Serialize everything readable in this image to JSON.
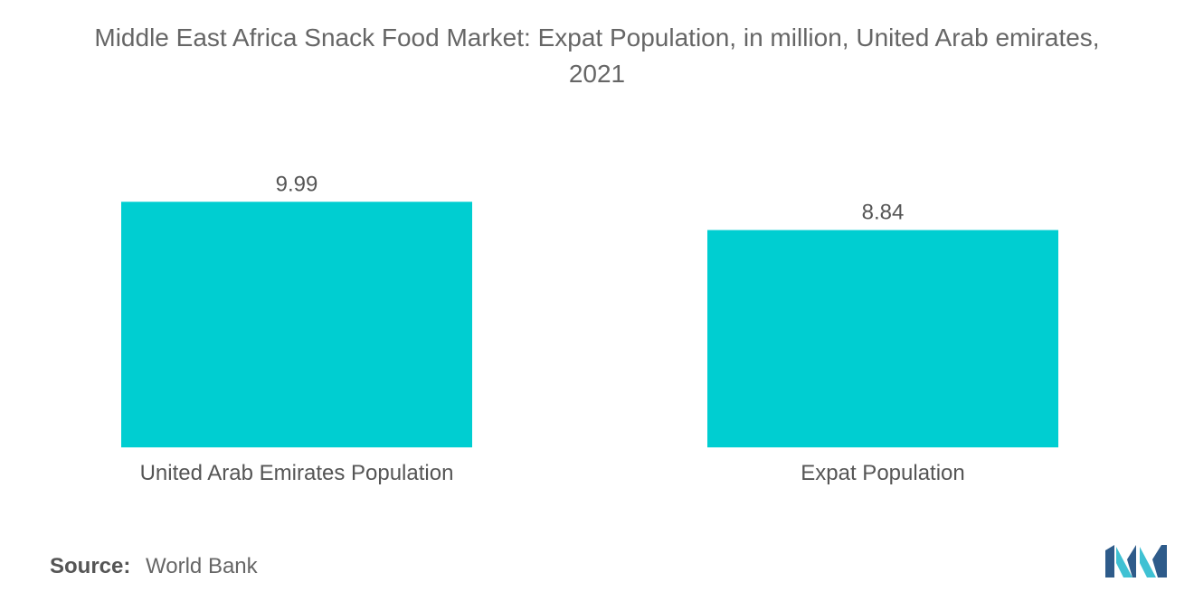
{
  "title_line1": "Middle East Africa Snack Food Market: Expat Population, in million, United Arab emirates,",
  "title_line2": "2021",
  "source": {
    "label": "Source:",
    "value": "World Bank"
  },
  "logo_icon": "mordor-intelligence-logo-icon",
  "colors": {
    "bar": "#00CED1",
    "text": "#555555",
    "logo_dark": "#2E5B8A",
    "logo_light": "#3FC1D3"
  },
  "chart_data": {
    "type": "bar",
    "categories": [
      "United Arab Emirates Population",
      "Expat Population"
    ],
    "values": [
      9.99,
      8.84
    ],
    "value_labels": [
      "9.99",
      "8.84"
    ],
    "title": "Middle East Africa Snack Food Market: Expat Population, in million, United Arab emirates, 2021",
    "xlabel": "",
    "ylabel": "",
    "ylim": [
      0,
      11.2
    ],
    "grid": false,
    "legend": "none"
  }
}
